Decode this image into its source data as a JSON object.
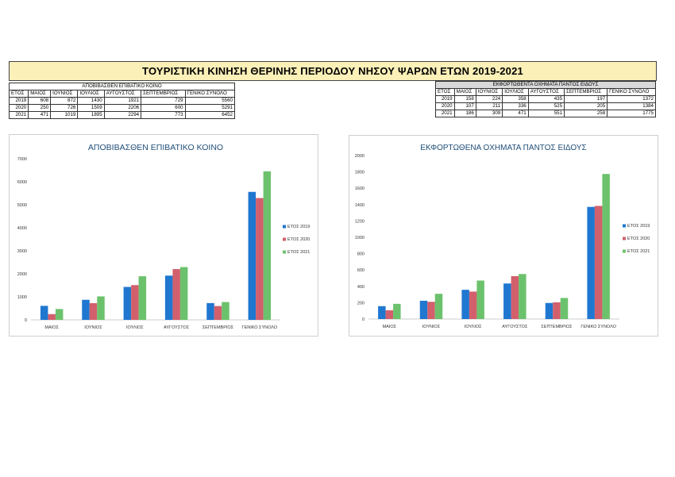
{
  "banner_title": "ΤΟΥΡΙΣΤΙΚΗ ΚΙΝΗΣΗ ΘΕΡΙΝΗΣ ΠΕΡΙΟΔΟΥ ΝΗΣΟΥ ΨΑΡΩΝ ΕΤΩΝ 2019-2021",
  "colors": {
    "s2019": "#1f77d0",
    "s2020": "#d2606c",
    "s2021": "#6cc26c",
    "banner_bg": "#fbf0b8",
    "title_text": "#1f4e79"
  },
  "tables": [
    {
      "caption": "ΑΠΟΒΙΒΑΣΘΕΝ ΕΠΙΒΑΤΙΚΟ ΚΟΙΝΟ",
      "headers": [
        "ΕΤΟΣ",
        "ΜΑΙΟΣ",
        "ΙΟΥΝΙΟΣ",
        "ΙΟΥΛΙΟΣ",
        "ΑΥΓΟΥΣΤΟΣ",
        "ΣΕΠΤΕΜΒΡΙΟΣ",
        "ΓΕΝΙΚΟ ΣΥΝΟΛΟ"
      ],
      "rows": [
        [
          "2019",
          "608",
          "872",
          "1430",
          "1921",
          "729",
          "5560"
        ],
        [
          "2020",
          "250",
          "726",
          "1509",
          "2206",
          "600",
          "5291"
        ],
        [
          "2021",
          "471",
          "1019",
          "1895",
          "2294",
          "773",
          "6452"
        ]
      ]
    },
    {
      "caption": "ΕΚΦΟΡΤΩΘΕΝΤΑ ΟΧΗΜΑΤΑ ΠΑΝΤΟΣ ΕΙΔΟΥΣ",
      "headers": [
        "ΕΤΟΣ",
        "ΜΑΙΟΣ",
        "ΙΟΥΝΙΟΣ",
        "ΙΟΥΛΙΟΣ",
        "ΑΥΓΟΥΣΤΟΣ",
        "ΣΕΠΤΕΜΒΡΙΟΣ",
        "ΓΕΝΙΚΟ ΣΥΝΟΛΟ"
      ],
      "rows": [
        [
          "2019",
          "158",
          "224",
          "358",
          "435",
          "197",
          "1372"
        ],
        [
          "2020",
          "107",
          "211",
          "336",
          "525",
          "205",
          "1384"
        ],
        [
          "2021",
          "186",
          "309",
          "471",
          "551",
          "258",
          "1775"
        ]
      ]
    }
  ],
  "chart_data": [
    {
      "type": "bar",
      "title": "ΑΠΟΒΙΒΑΣΘΕΝ ΕΠΙΒΑΤΙΚΟ ΚΟΙΝΟ",
      "categories": [
        "ΜΑΙΟΣ",
        "ΙΟΥΝΙΟΣ",
        "ΙΟΥΛΙΟΣ",
        "ΑΥΓΟΥΣΤΟΣ",
        "ΣΕΠΤΕΜΒΡΙΟΣ",
        "ΓΕΝΙΚΟ ΣΥΝΟΛΟ"
      ],
      "series": [
        {
          "name": "ΕΤΟΣ 2019",
          "values": [
            608,
            872,
            1430,
            1921,
            729,
            5560
          ]
        },
        {
          "name": "ΕΤΟΣ 2020",
          "values": [
            250,
            726,
            1509,
            2206,
            600,
            5291
          ]
        },
        {
          "name": "ΕΤΟΣ 2021",
          "values": [
            471,
            1019,
            1895,
            2294,
            773,
            6452
          ]
        }
      ],
      "ylim": [
        0,
        7000
      ],
      "yticks": [
        0,
        1000,
        2000,
        3000,
        4000,
        5000,
        6000,
        7000
      ],
      "grid": false,
      "legend": "right"
    },
    {
      "type": "bar",
      "title": "ΕΚΦΟΡΤΩΘΕΝΑ ΟΧΗΜΑΤΑ ΠΑΝΤΟΣ ΕΙΔΟΥΣ",
      "categories": [
        "ΜΑΙΟΣ",
        "ΙΟΥΝΙΟΣ",
        "ΙΟΥΛΙΟΣ",
        "ΑΥΓΟΥΣΤΟΣ",
        "ΣΕΠΤΕΜΒΡΙΟΣ",
        "ΓΕΝΙΚΟ ΣΥΝΟΛΟ"
      ],
      "series": [
        {
          "name": "ΕΤΟΣ 2019",
          "values": [
            158,
            224,
            358,
            435,
            197,
            1372
          ]
        },
        {
          "name": "ΕΤΟΣ 2020",
          "values": [
            107,
            211,
            336,
            525,
            205,
            1384
          ]
        },
        {
          "name": "ΕΤΟΣ 2021",
          "values": [
            186,
            309,
            471,
            551,
            258,
            1775
          ]
        }
      ],
      "ylim": [
        0,
        2000
      ],
      "yticks": [
        0,
        200,
        400,
        600,
        800,
        1000,
        1200,
        1400,
        1600,
        1800,
        2000
      ],
      "grid": false,
      "legend": "right"
    }
  ]
}
